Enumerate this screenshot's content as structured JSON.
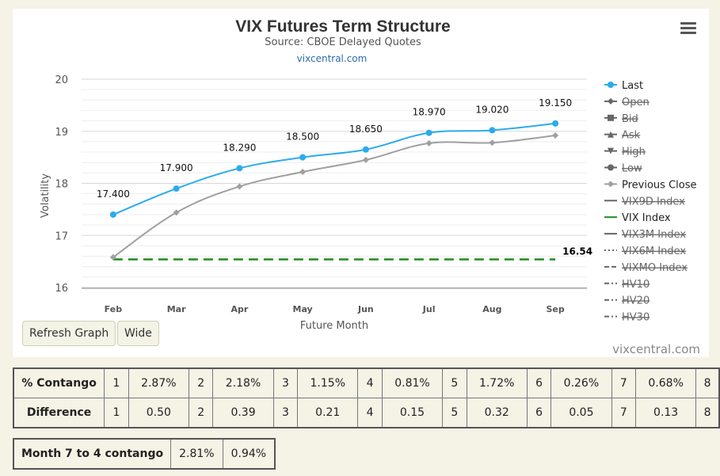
{
  "chart": {
    "title": "VIX Futures Term Structure",
    "subtitle": "Source: CBOE Delayed Quotes",
    "link": "vixcentral.com",
    "credit": "vixcentral.com"
  },
  "chart_data": {
    "type": "line",
    "title": "VIX Futures Term Structure",
    "subtitle": "Source: CBOE Delayed Quotes",
    "xlabel": "Future Month",
    "ylabel": "Volatility",
    "categories": [
      "Feb",
      "Mar",
      "Apr",
      "May",
      "Jun",
      "Jul",
      "Aug",
      "Sep"
    ],
    "ylim": [
      16,
      20
    ],
    "yticks": [
      "16",
      "17",
      "18",
      "19",
      "20"
    ],
    "grid": true,
    "legend_position": "right",
    "series": [
      {
        "name": "Last",
        "values": [
          17.4,
          17.9,
          18.29,
          18.5,
          18.65,
          18.97,
          19.02,
          19.15
        ],
        "labels": [
          "17.400",
          "17.900",
          "18.290",
          "18.500",
          "18.650",
          "18.970",
          "19.020",
          "19.150"
        ],
        "color": "#2aabee"
      },
      {
        "name": "Previous Close",
        "values": [
          16.58,
          17.44,
          17.94,
          18.22,
          18.45,
          18.77,
          18.78,
          18.92
        ],
        "color": "#a0a0a0"
      },
      {
        "name": "VIX Index",
        "values": [
          16.54,
          16.54,
          16.54,
          16.54,
          16.54,
          16.54,
          16.54,
          16.54
        ],
        "end_label": "16.54",
        "color": "#1e8c1e"
      }
    ],
    "legend": [
      {
        "name": "Last",
        "marker": "circle",
        "line": "solid",
        "color": "#2aabee",
        "hidden": false
      },
      {
        "name": "Open",
        "marker": "diamond",
        "line": "solid",
        "color": "#666666",
        "hidden": true
      },
      {
        "name": "Bid",
        "marker": "square",
        "line": "solid",
        "color": "#666666",
        "hidden": true
      },
      {
        "name": "Ask",
        "marker": "triangle",
        "line": "solid",
        "color": "#666666",
        "hidden": true
      },
      {
        "name": "High",
        "marker": "triangle-down",
        "line": "solid",
        "color": "#666666",
        "hidden": true
      },
      {
        "name": "Low",
        "marker": "circle",
        "line": "solid",
        "color": "#666666",
        "hidden": true
      },
      {
        "name": "Previous Close",
        "marker": "diamond",
        "line": "solid",
        "color": "#a0a0a0",
        "hidden": false
      },
      {
        "name": "VIX9D Index",
        "marker": "none",
        "line": "solid",
        "color": "#666666",
        "hidden": true
      },
      {
        "name": "VIX Index",
        "marker": "none",
        "line": "solid",
        "color": "#1e8c1e",
        "hidden": false
      },
      {
        "name": "VIX3M Index",
        "marker": "none",
        "line": "solid",
        "color": "#666666",
        "hidden": true
      },
      {
        "name": "VIX6M Index",
        "marker": "none",
        "line": "dotted",
        "color": "#666666",
        "hidden": true
      },
      {
        "name": "VIXMO Index",
        "marker": "none",
        "line": "dashed",
        "color": "#666666",
        "hidden": true
      },
      {
        "name": "HV10",
        "marker": "none",
        "line": "dashdot",
        "color": "#666666",
        "hidden": true
      },
      {
        "name": "HV20",
        "marker": "none",
        "line": "dashdot",
        "color": "#666666",
        "hidden": true
      },
      {
        "name": "HV30",
        "marker": "none",
        "line": "dashdot",
        "color": "#666666",
        "hidden": true
      }
    ]
  },
  "buttons": {
    "refresh": "Refresh Graph",
    "wide": "Wide"
  },
  "contango_table": {
    "rows": [
      {
        "label": "% Contango",
        "cells": [
          "1",
          "2.87%",
          "2",
          "2.18%",
          "3",
          "1.15%",
          "4",
          "0.81%",
          "5",
          "1.72%",
          "6",
          "0.26%",
          "7",
          "0.68%",
          "8"
        ]
      },
      {
        "label": "Difference",
        "cells": [
          "1",
          "0.50",
          "2",
          "0.39",
          "3",
          "0.21",
          "4",
          "0.15",
          "5",
          "0.32",
          "6",
          "0.05",
          "7",
          "0.13",
          "8"
        ]
      }
    ]
  },
  "month_7_to_4": {
    "label": "Month 7 to 4 contango",
    "values": [
      "2.81%",
      "0.94%"
    ]
  }
}
